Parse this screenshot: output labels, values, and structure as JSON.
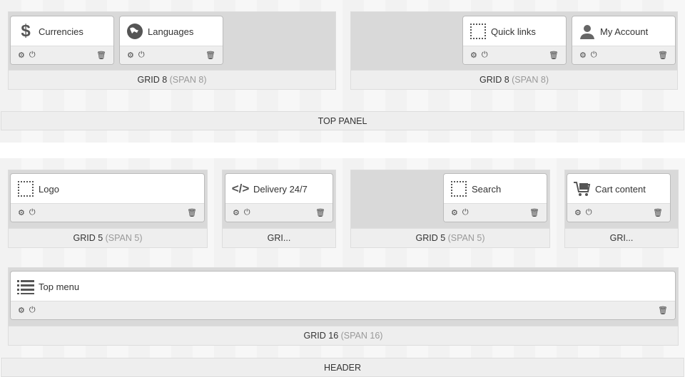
{
  "top_section": {
    "grids": [
      {
        "label": "GRID 8",
        "span": "(SPAN 8)"
      },
      {
        "label": "GRID 8",
        "span": "(SPAN 8)"
      }
    ],
    "modules": [
      {
        "title": "Currencies",
        "icon": "dollar-icon"
      },
      {
        "title": "Languages",
        "icon": "globe-icon"
      },
      {
        "title": "Quick links",
        "icon": "placeholder-icon"
      },
      {
        "title": "My Account",
        "icon": "user-icon"
      }
    ],
    "panel_label": "TOP PANEL"
  },
  "header_section": {
    "grids": [
      {
        "label": "GRID 5",
        "span": "(SPAN 5)"
      },
      {
        "label": "GRI...",
        "span": ""
      },
      {
        "label": "GRID 5",
        "span": "(SPAN 5)"
      },
      {
        "label": "GRI...",
        "span": ""
      },
      {
        "label": "GRID 16",
        "span": "(SPAN 16)"
      }
    ],
    "modules": [
      {
        "title": "Logo",
        "icon": "placeholder-icon"
      },
      {
        "title": "Delivery 24/7",
        "icon": "code-icon"
      },
      {
        "title": "Search",
        "icon": "placeholder-icon"
      },
      {
        "title": "Cart content",
        "icon": "cart-icon"
      },
      {
        "title": "Top menu",
        "icon": "list-icon"
      }
    ],
    "panel_label": "HEADER"
  }
}
